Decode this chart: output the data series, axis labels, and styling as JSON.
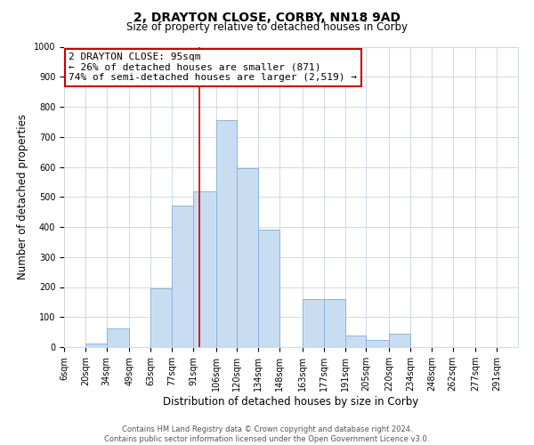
{
  "title": "2, DRAYTON CLOSE, CORBY, NN18 9AD",
  "subtitle": "Size of property relative to detached houses in Corby",
  "xlabel": "Distribution of detached houses by size in Corby",
  "ylabel": "Number of detached properties",
  "bin_labels": [
    "6sqm",
    "20sqm",
    "34sqm",
    "49sqm",
    "63sqm",
    "77sqm",
    "91sqm",
    "106sqm",
    "120sqm",
    "134sqm",
    "148sqm",
    "163sqm",
    "177sqm",
    "191sqm",
    "205sqm",
    "220sqm",
    "234sqm",
    "248sqm",
    "262sqm",
    "277sqm",
    "291sqm"
  ],
  "bar_values": [
    0,
    12,
    62,
    0,
    195,
    470,
    520,
    755,
    595,
    390,
    0,
    160,
    160,
    40,
    25,
    45,
    0,
    0,
    0,
    0,
    0
  ],
  "bar_color": "#c9ddf2",
  "bar_edge_color": "#8ab4d9",
  "bin_edges": [
    6,
    20,
    34,
    49,
    63,
    77,
    91,
    106,
    120,
    134,
    148,
    163,
    177,
    191,
    205,
    220,
    234,
    248,
    262,
    277,
    291,
    305
  ],
  "property_line_x": 95,
  "ylim": [
    0,
    1000
  ],
  "yticks": [
    0,
    100,
    200,
    300,
    400,
    500,
    600,
    700,
    800,
    900,
    1000
  ],
  "annotation_box_text": "2 DRAYTON CLOSE: 95sqm\n← 26% of detached houses are smaller (871)\n74% of semi-detached houses are larger (2,519) →",
  "annotation_box_color": "#ffffff",
  "annotation_box_edge_color": "#cc0000",
  "vline_color": "#cc0000",
  "footer_line1": "Contains HM Land Registry data © Crown copyright and database right 2024.",
  "footer_line2": "Contains public sector information licensed under the Open Government Licence v3.0.",
  "background_color": "#ffffff",
  "grid_color": "#d0d8e4",
  "title_fontsize": 10,
  "subtitle_fontsize": 8.5,
  "tick_fontsize": 7,
  "label_fontsize": 8.5,
  "annotation_fontsize": 8,
  "footer_fontsize": 6
}
